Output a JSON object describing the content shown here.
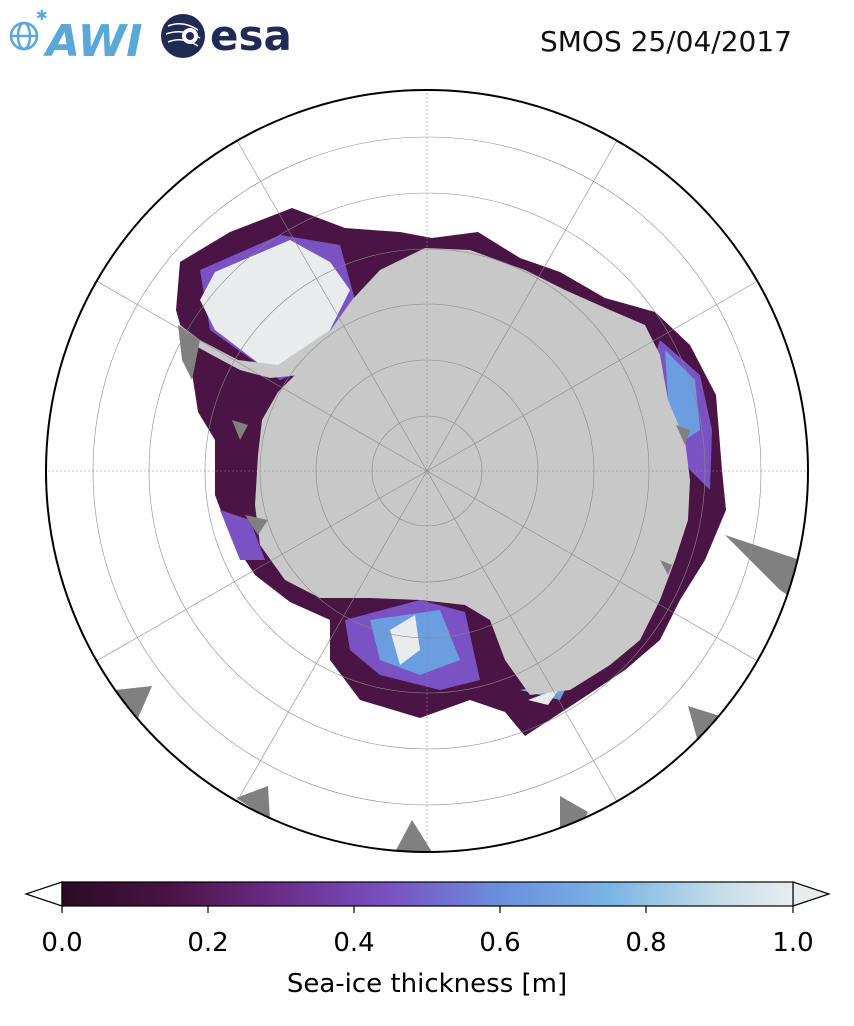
{
  "header": {
    "awi_logo_text": "AWI",
    "esa_logo_text": "esa",
    "title": "SMOS 25/04/2017"
  },
  "colors": {
    "land": "#c8c8c8",
    "outside_mask": "#808080",
    "ice_low": "#2a0b25",
    "ice_mid": "#6a2e8a",
    "ice_high": "#6a9ee0",
    "ice_thick": "#e8eced",
    "awi_blue": "#5aa7d8",
    "esa_navy": "#1f2a55"
  },
  "colorbar": {
    "label": "Sea-ice thickness [m]",
    "ticks": [
      "0.0",
      "0.2",
      "0.4",
      "0.6",
      "0.8",
      "1.0"
    ],
    "min": 0.0,
    "max": 1.0,
    "extend": "both"
  }
}
